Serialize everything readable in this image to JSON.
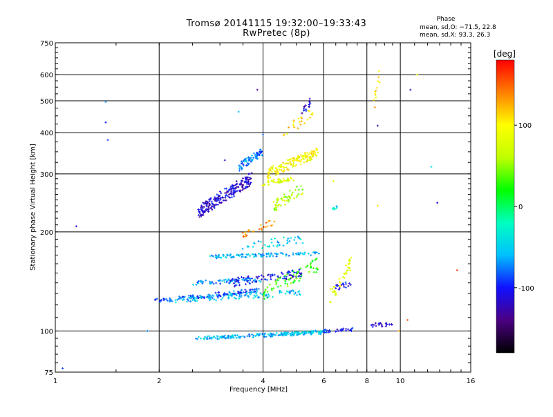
{
  "header": {
    "title_line1": "Tromsø 20141115 19:32:00–19:33:43",
    "title_line2": "RwPretec (8p)",
    "phase_heading": "Phase",
    "phase_o": "mean, sd,O: −71.5, 22.8",
    "phase_x": "mean, sd,X:  93.3, 26.3"
  },
  "chart_data": {
    "type": "scatter",
    "xlabel": "Frequency [MHz]",
    "ylabel": "Stationary phase Virtual Height [km]",
    "x_scale": "log",
    "y_scale": "log",
    "xlim": [
      1,
      16
    ],
    "ylim": [
      75,
      750
    ],
    "x_ticks": [
      1,
      2,
      4,
      6,
      8,
      10,
      16
    ],
    "y_ticks": [
      75,
      100,
      200,
      300,
      400,
      500,
      600,
      750
    ],
    "grid": true,
    "colorbar": {
      "label": "[deg]",
      "range": [
        -180,
        180
      ],
      "ticks": [
        -100,
        0,
        100
      ],
      "colors": [
        "#000000",
        "#4b0082",
        "#1010ff",
        "#00c0ff",
        "#00ffc0",
        "#00ff00",
        "#c0ff00",
        "#ffff00",
        "#ff8000",
        "#ff0000"
      ]
    },
    "traces": [
      {
        "x0": 2.55,
        "x1": 6.0,
        "y0": 95,
        "y1": 99,
        "phase": -60,
        "n": 170,
        "spread": 0.012
      },
      {
        "x0": 4.6,
        "x1": 6.1,
        "y0": 98,
        "y1": 100,
        "phase": -40,
        "n": 40,
        "spread": 0.01
      },
      {
        "x0": 6.0,
        "x1": 7.3,
        "y0": 100,
        "y1": 101,
        "phase": -105,
        "n": 30,
        "spread": 0.012
      },
      {
        "x0": 8.2,
        "x1": 9.6,
        "y0": 104,
        "y1": 105,
        "phase": -120,
        "n": 22,
        "spread": 0.015
      },
      {
        "x0": 1.9,
        "x1": 3.9,
        "y0": 123,
        "y1": 133,
        "phase": -85,
        "n": 120,
        "spread": 0.015
      },
      {
        "x0": 2.2,
        "x1": 5.2,
        "y0": 124,
        "y1": 131,
        "phase": -55,
        "n": 110,
        "spread": 0.02
      },
      {
        "x0": 2.5,
        "x1": 4.0,
        "y0": 140,
        "y1": 143,
        "phase": -70,
        "n": 70,
        "spread": 0.015
      },
      {
        "x0": 3.2,
        "x1": 5.2,
        "y0": 140,
        "y1": 150,
        "phase": -105,
        "n": 90,
        "spread": 0.03
      },
      {
        "x0": 4.0,
        "x1": 5.8,
        "y0": 130,
        "y1": 160,
        "phase": 30,
        "n": 70,
        "spread": 0.05
      },
      {
        "x0": 2.8,
        "x1": 5.9,
        "y0": 168,
        "y1": 172,
        "phase": -60,
        "n": 110,
        "spread": 0.012
      },
      {
        "x0": 3.5,
        "x1": 5.2,
        "y0": 180,
        "y1": 190,
        "phase": -50,
        "n": 40,
        "spread": 0.03
      },
      {
        "x0": 2.6,
        "x1": 3.7,
        "y0": 230,
        "y1": 290,
        "phase": -115,
        "n": 210,
        "spread": 0.045
      },
      {
        "x0": 3.4,
        "x1": 4.0,
        "y0": 315,
        "y1": 350,
        "phase": -75,
        "n": 70,
        "spread": 0.03
      },
      {
        "x0": 4.1,
        "x1": 5.8,
        "y0": 300,
        "y1": 350,
        "phase": 95,
        "n": 150,
        "spread": 0.035
      },
      {
        "x0": 4.0,
        "x1": 4.9,
        "y0": 280,
        "y1": 290,
        "phase": 80,
        "n": 40,
        "spread": 0.015
      },
      {
        "x0": 4.3,
        "x1": 5.2,
        "y0": 240,
        "y1": 270,
        "phase": 60,
        "n": 50,
        "spread": 0.04
      },
      {
        "x0": 4.6,
        "x1": 5.6,
        "y0": 400,
        "y1": 460,
        "phase": 110,
        "n": 25,
        "spread": 0.04
      },
      {
        "x0": 5.2,
        "x1": 5.5,
        "y0": 460,
        "y1": 500,
        "phase": -115,
        "n": 18,
        "spread": 0.03
      },
      {
        "x0": 6.2,
        "x1": 7.2,
        "y0": 125,
        "y1": 160,
        "phase": 80,
        "n": 40,
        "spread": 0.05
      },
      {
        "x0": 6.5,
        "x1": 7.2,
        "y0": 135,
        "y1": 140,
        "phase": -105,
        "n": 18,
        "spread": 0.02
      },
      {
        "x0": 3.5,
        "x1": 4.3,
        "y0": 195,
        "y1": 215,
        "phase": 140,
        "n": 25,
        "spread": 0.02
      },
      {
        "x0": 8.4,
        "x1": 8.8,
        "y0": 480,
        "y1": 650,
        "phase": 110,
        "n": 12,
        "spread": 0.05
      },
      {
        "x0": 6.3,
        "x1": 6.6,
        "y0": 232,
        "y1": 238,
        "phase": -40,
        "n": 10,
        "spread": 0.01
      }
    ],
    "scatter_points": [
      {
        "x": 1.15,
        "y": 208,
        "phase": -110
      },
      {
        "x": 1.4,
        "y": 496,
        "phase": -70
      },
      {
        "x": 1.4,
        "y": 430,
        "phase": -100
      },
      {
        "x": 1.42,
        "y": 380,
        "phase": -90
      },
      {
        "x": 1.85,
        "y": 100,
        "phase": -70
      },
      {
        "x": 3.1,
        "y": 330,
        "phase": -120
      },
      {
        "x": 3.4,
        "y": 463,
        "phase": -60
      },
      {
        "x": 3.85,
        "y": 540,
        "phase": -130
      },
      {
        "x": 4.0,
        "y": 395,
        "phase": -80
      },
      {
        "x": 6.4,
        "y": 285,
        "phase": 90
      },
      {
        "x": 8.6,
        "y": 420,
        "phase": -120
      },
      {
        "x": 8.6,
        "y": 240,
        "phase": 110
      },
      {
        "x": 10.7,
        "y": 540,
        "phase": -120
      },
      {
        "x": 11.2,
        "y": 600,
        "phase": 100
      },
      {
        "x": 12.3,
        "y": 315,
        "phase": -40
      },
      {
        "x": 12.8,
        "y": 245,
        "phase": -100
      },
      {
        "x": 14.6,
        "y": 153,
        "phase": 160
      },
      {
        "x": 1.05,
        "y": 77,
        "phase": -90
      },
      {
        "x": 10.5,
        "y": 108,
        "phase": 150
      },
      {
        "x": 9.9,
        "y": 100,
        "phase": 120
      }
    ]
  }
}
